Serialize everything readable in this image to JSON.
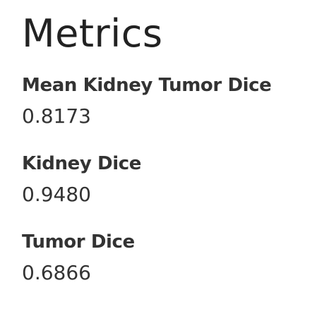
{
  "page": {
    "title": "Metrics"
  },
  "metrics": [
    {
      "label": "Mean Kidney Tumor Dice",
      "value": "0.8173"
    },
    {
      "label": "Kidney Dice",
      "value": "0.9480"
    },
    {
      "label": "Tumor Dice",
      "value": "0.6866"
    }
  ]
}
